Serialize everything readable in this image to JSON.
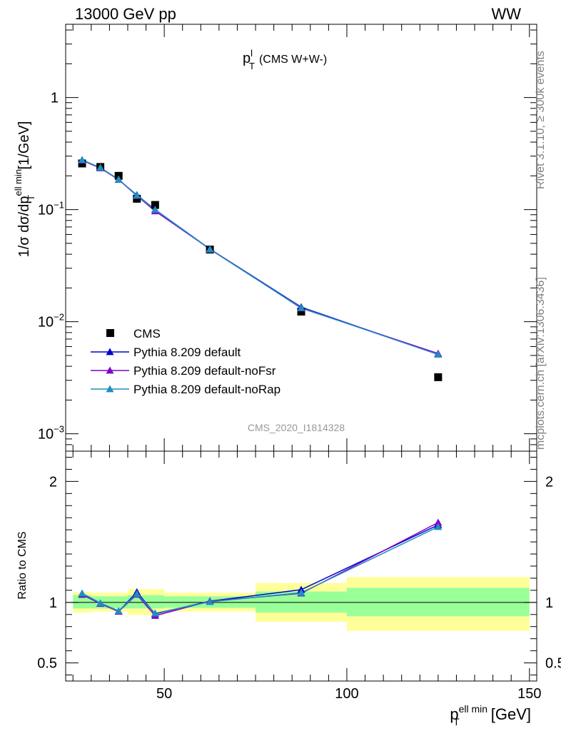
{
  "header": {
    "left": "13000 GeV pp",
    "right": "WW"
  },
  "plot_title": {
    "main": "p",
    "sup": "l",
    "sub": "T",
    "rest": "(CMS W+W-)"
  },
  "side_text": {
    "rivet": "Rivet 3.1.10, ≥ 300k events",
    "mcplots": "mcplots.cern.ch [arXiv:1306.3436]"
  },
  "watermark": "CMS_2020_I1814328",
  "colors": {
    "data": "#000000",
    "default": "#0000cc",
    "noFsr": "#7f00cc",
    "noRap": "#1f8fbf",
    "band_inner": "#99ff99",
    "band_outer": "#ffff99",
    "ref_line": "#000000"
  },
  "chart_data": [
    {
      "type": "scatter",
      "panel": "main",
      "ylabel": "1/σ dσ/dp_T^{ell min} [1/GeV]",
      "yscale": "log",
      "ylim": [
        0.0007,
        4.5
      ],
      "xlim": [
        23,
        152
      ],
      "yticks": [
        {
          "value": 0.001,
          "base": "10",
          "exp": "−3"
        },
        {
          "value": 0.01,
          "base": "10",
          "exp": "−2"
        },
        {
          "value": 0.1,
          "base": "10",
          "exp": "−1"
        },
        {
          "value": 1,
          "base": "1",
          "exp": ""
        }
      ],
      "legend": {
        "placement": "bottom-left",
        "entries": [
          "CMS",
          "Pythia 8.209 default",
          "Pythia 8.209 default-noFsr",
          "Pythia 8.209 default-noRap"
        ]
      },
      "x": [
        27.5,
        32.5,
        37.5,
        42.5,
        47.5,
        62.5,
        87.5,
        125
      ],
      "series": [
        {
          "name": "CMS",
          "style": "data",
          "values": [
            0.258,
            0.24,
            0.2,
            0.125,
            0.11,
            0.044,
            0.0123,
            0.0032
          ]
        },
        {
          "name": "Pythia 8.209 default",
          "style": "default",
          "values": [
            0.275,
            0.235,
            0.185,
            0.135,
            0.1,
            0.0445,
            0.0135,
            0.0051
          ]
        },
        {
          "name": "Pythia 8.209 default-noFsr",
          "style": "noFsr",
          "values": [
            0.275,
            0.235,
            0.185,
            0.133,
            0.097,
            0.0445,
            0.0132,
            0.0052
          ]
        },
        {
          "name": "Pythia 8.209 default-noRap",
          "style": "noRap",
          "values": [
            0.278,
            0.237,
            0.186,
            0.134,
            0.1,
            0.0442,
            0.0133,
            0.0051
          ]
        }
      ]
    },
    {
      "type": "line",
      "panel": "ratio",
      "ylabel": "Ratio to CMS",
      "xlabel": "p_T^{ell min} [GeV]",
      "ylim": [
        0.35,
        2.25
      ],
      "xlim": [
        23,
        152
      ],
      "yticks": [
        0.5,
        1,
        2
      ],
      "ytick_labels": [
        "0.5",
        "1",
        "2"
      ],
      "xticks": [
        50,
        100,
        150
      ],
      "xtick_labels": [
        "50",
        "100",
        "150"
      ],
      "bins": [
        {
          "x0": 25,
          "x1": 30,
          "inner": [
            0.95,
            1.06
          ],
          "outer": [
            0.915,
            1.085
          ]
        },
        {
          "x0": 30,
          "x1": 35,
          "inner": [
            0.95,
            1.05
          ],
          "outer": [
            0.925,
            1.08
          ]
        },
        {
          "x0": 35,
          "x1": 40,
          "inner": [
            0.95,
            1.05
          ],
          "outer": [
            0.925,
            1.08
          ]
        },
        {
          "x0": 40,
          "x1": 45,
          "inner": [
            0.95,
            1.06
          ],
          "outer": [
            0.895,
            1.11
          ]
        },
        {
          "x0": 45,
          "x1": 50,
          "inner": [
            0.95,
            1.06
          ],
          "outer": [
            0.895,
            1.11
          ]
        },
        {
          "x0": 50,
          "x1": 75,
          "inner": [
            0.955,
            1.05
          ],
          "outer": [
            0.925,
            1.08
          ]
        },
        {
          "x0": 75,
          "x1": 100,
          "inner": [
            0.915,
            1.09
          ],
          "outer": [
            0.84,
            1.16
          ]
        },
        {
          "x0": 100,
          "x1": 150,
          "inner": [
            0.885,
            1.12
          ],
          "outer": [
            0.765,
            1.21
          ]
        }
      ],
      "x": [
        27.5,
        32.5,
        37.5,
        42.5,
        47.5,
        62.5,
        87.5,
        125
      ],
      "series": [
        {
          "name": "Pythia 8.209 default",
          "style": "default",
          "values": [
            1.065,
            0.99,
            0.925,
            1.085,
            0.905,
            1.01,
            1.105,
            1.64
          ]
        },
        {
          "name": "Pythia 8.209 default-noFsr",
          "style": "noFsr",
          "values": [
            1.065,
            0.99,
            0.925,
            1.065,
            0.89,
            1.01,
            1.075,
            1.66
          ]
        },
        {
          "name": "Pythia 8.209 default-noRap",
          "style": "noRap",
          "values": [
            1.075,
            0.995,
            0.93,
            1.07,
            0.91,
            1.005,
            1.08,
            1.625
          ]
        }
      ]
    }
  ]
}
